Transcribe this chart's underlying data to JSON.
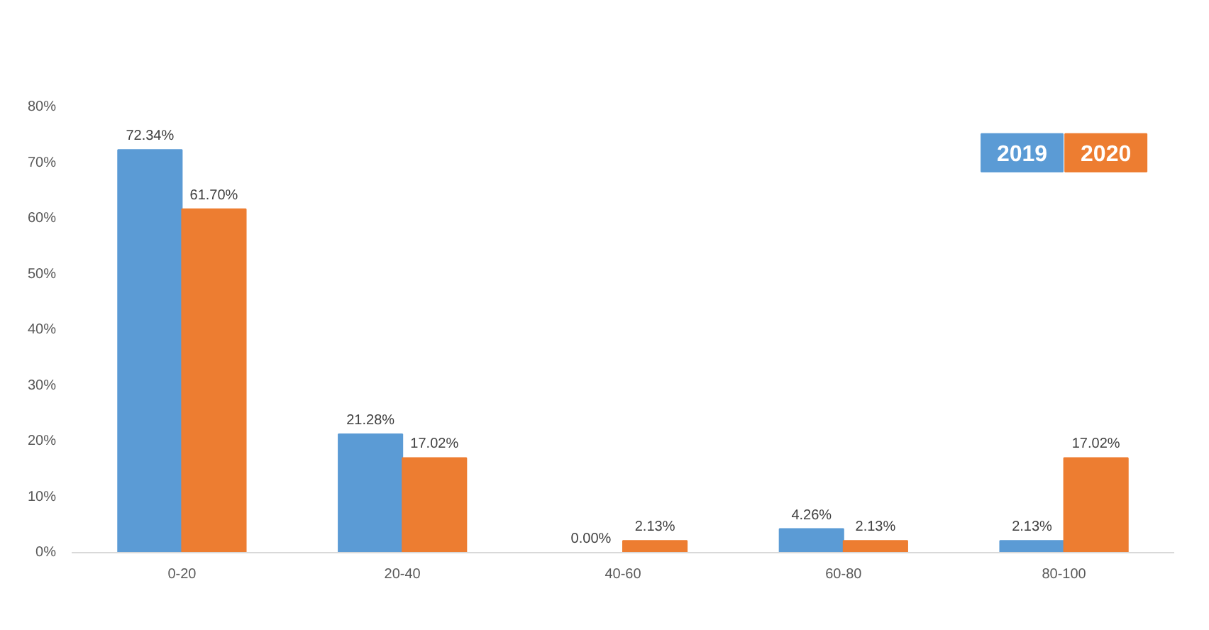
{
  "chart_data": {
    "type": "bar",
    "categories": [
      "0-20",
      "20-40",
      "40-60",
      "60-80",
      "80-100"
    ],
    "series": [
      {
        "name": "2019",
        "color": "#5b9bd5",
        "values": [
          72.34,
          21.28,
          0.0,
          4.26,
          2.13
        ],
        "value_labels": [
          "72.34%",
          "21.28%",
          "0.00%",
          "4.26%",
          "2.13%"
        ]
      },
      {
        "name": "2020",
        "color": "#ed7d31",
        "values": [
          61.7,
          17.02,
          2.13,
          2.13,
          17.02
        ],
        "value_labels": [
          "61.70%",
          "17.02%",
          "2.13%",
          "2.13%",
          "17.02%"
        ]
      }
    ],
    "ylim": [
      0,
      80
    ],
    "yticks": [
      {
        "value": 0,
        "label": "0%"
      },
      {
        "value": 10,
        "label": "10%"
      },
      {
        "value": 20,
        "label": "20%"
      },
      {
        "value": 30,
        "label": "30%"
      },
      {
        "value": 40,
        "label": "40%"
      },
      {
        "value": 50,
        "label": "50%"
      },
      {
        "value": 60,
        "label": "60%"
      },
      {
        "value": 70,
        "label": "70%"
      },
      {
        "value": 80,
        "label": "80%"
      }
    ],
    "grid": false,
    "legend": "top right"
  }
}
